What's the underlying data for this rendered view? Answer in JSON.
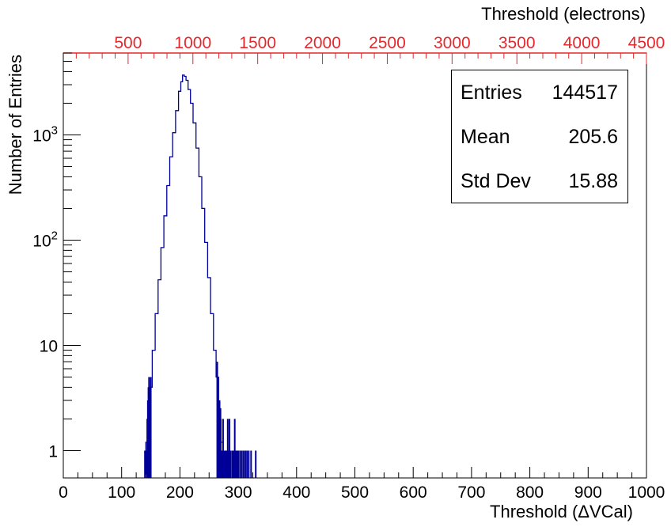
{
  "chart_data": {
    "type": "histogram",
    "title": "",
    "xlabel": "Threshold (ΔVCal)",
    "ylabel": "Number of Entries",
    "top_axis_label": "Threshold (electrons)",
    "xlim": [
      0,
      1000
    ],
    "top_xlim": [
      0,
      4500
    ],
    "top_axis_color": "#e8262c",
    "ylim": [
      0.55,
      6000
    ],
    "y_scale": "log",
    "x_ticks": [
      "0",
      "100",
      "200",
      "300",
      "400",
      "500",
      "600",
      "700",
      "800",
      "900",
      "1000"
    ],
    "top_x_ticks": [
      "500",
      "1000",
      "1500",
      "2000",
      "2500",
      "3000",
      "3500",
      "4000",
      "4500"
    ],
    "y_tick_labels": [
      "1",
      "10",
      "10^2",
      "10^3"
    ],
    "line_color": "#000099",
    "grid": false,
    "legend": "none",
    "stats": {
      "entries_label": "Entries",
      "entries_value": "144517",
      "mean_label": "Mean",
      "mean_value": "205.6",
      "std_label": "Std Dev",
      "std_value": "15.88"
    },
    "curve": [
      [
        140,
        0.6
      ],
      [
        143,
        1.2
      ],
      [
        146,
        2.0
      ],
      [
        150,
        4.0
      ],
      [
        155,
        9
      ],
      [
        160,
        20
      ],
      [
        165,
        42
      ],
      [
        170,
        85
      ],
      [
        175,
        170
      ],
      [
        180,
        330
      ],
      [
        185,
        620
      ],
      [
        190,
        1050
      ],
      [
        195,
        1700
      ],
      [
        200,
        2600
      ],
      [
        203,
        3200
      ],
      [
        206,
        3700
      ],
      [
        209,
        3600
      ],
      [
        212,
        3300
      ],
      [
        216,
        2700
      ],
      [
        220,
        2000
      ],
      [
        225,
        1300
      ],
      [
        230,
        750
      ],
      [
        235,
        400
      ],
      [
        240,
        200
      ],
      [
        245,
        95
      ],
      [
        250,
        44
      ],
      [
        255,
        20
      ],
      [
        260,
        9
      ],
      [
        264,
        5
      ],
      [
        268,
        2.5
      ],
      [
        272,
        1.2
      ],
      [
        276,
        0.6
      ]
    ],
    "outlier_bins": [
      {
        "x": 140,
        "y": 1
      },
      {
        "x": 143,
        "y": 1
      },
      {
        "x": 144,
        "y": 2
      },
      {
        "x": 145,
        "y": 3
      },
      {
        "x": 146,
        "y": 4
      },
      {
        "x": 147,
        "y": 5
      },
      {
        "x": 148,
        "y": 4
      },
      {
        "x": 149,
        "y": 3
      },
      {
        "x": 150,
        "y": 5
      },
      {
        "x": 264,
        "y": 7
      },
      {
        "x": 266,
        "y": 5
      },
      {
        "x": 268,
        "y": 3
      },
      {
        "x": 270,
        "y": 2
      },
      {
        "x": 272,
        "y": 1
      },
      {
        "x": 274,
        "y": 2
      },
      {
        "x": 276,
        "y": 1
      },
      {
        "x": 278,
        "y": 1
      },
      {
        "x": 280,
        "y": 1
      },
      {
        "x": 282,
        "y": 2
      },
      {
        "x": 284,
        "y": 1
      },
      {
        "x": 285,
        "y": 2
      },
      {
        "x": 287,
        "y": 1
      },
      {
        "x": 290,
        "y": 1
      },
      {
        "x": 292,
        "y": 1
      },
      {
        "x": 294,
        "y": 2
      },
      {
        "x": 296,
        "y": 1
      },
      {
        "x": 298,
        "y": 1
      },
      {
        "x": 300,
        "y": 1
      },
      {
        "x": 303,
        "y": 1
      },
      {
        "x": 306,
        "y": 1
      },
      {
        "x": 309,
        "y": 1
      },
      {
        "x": 312,
        "y": 1
      },
      {
        "x": 315,
        "y": 1
      },
      {
        "x": 318,
        "y": 1
      },
      {
        "x": 322,
        "y": 1
      },
      {
        "x": 330,
        "y": 1
      }
    ]
  }
}
